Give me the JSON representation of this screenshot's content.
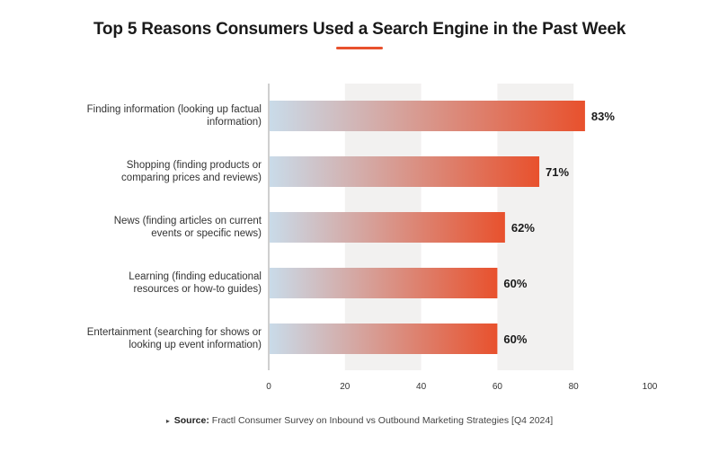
{
  "colors": {
    "accent": "#e8512d",
    "bar_start": "#c9dbe9",
    "band": "#f2f1f0",
    "axis": "#cfcfcf"
  },
  "chart_data": {
    "type": "bar",
    "orientation": "horizontal",
    "title": "Top 5 Reasons Consumers Used a Search Engine in the Past Week",
    "categories": [
      [
        "Finding information (looking up factual",
        "information)"
      ],
      [
        "Shopping (finding products or",
        "comparing prices and reviews)"
      ],
      [
        "News (finding articles on current",
        "events or specific news)"
      ],
      [
        "Learning (finding educational",
        "resources or how-to guides)"
      ],
      [
        "Entertainment (searching for shows or",
        "looking up event information)"
      ]
    ],
    "values": [
      83,
      71,
      62,
      60,
      60
    ],
    "value_labels": [
      "83%",
      "71%",
      "62%",
      "60%",
      "60%"
    ],
    "xlim": [
      0,
      100
    ],
    "xticks": [
      "0",
      "20",
      "40",
      "60",
      "80",
      "100"
    ],
    "grid": false,
    "shaded_bands": [
      [
        20,
        40
      ],
      [
        60,
        80
      ]
    ]
  },
  "footer": {
    "marker": "▸",
    "source_label": "Source:",
    "source_text": "Fractl Consumer Survey on Inbound vs Outbound Marketing Strategies [Q4 2024]"
  }
}
